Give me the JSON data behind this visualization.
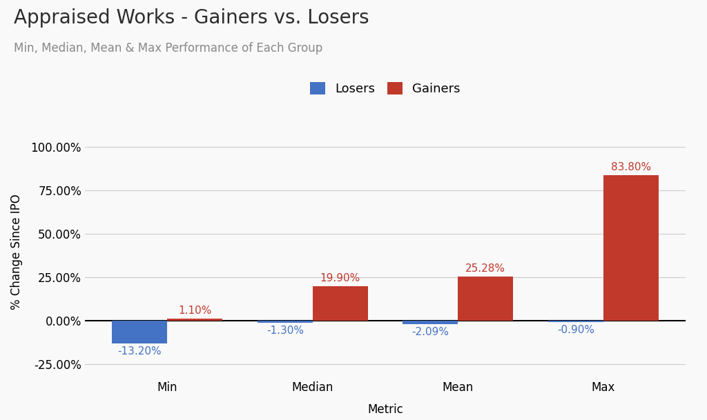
{
  "title": "Appraised Works - Gainers vs. Losers",
  "subtitle": "Min, Median, Mean & Max Performance of Each Group",
  "xlabel": "Metric",
  "ylabel": "% Change Since IPO",
  "categories": [
    "Min",
    "Median",
    "Mean",
    "Max"
  ],
  "losers": [
    -13.2,
    -1.3,
    -2.09,
    -0.9
  ],
  "gainers": [
    1.1,
    19.9,
    25.28,
    83.8
  ],
  "loser_color": "#4472C4",
  "gainer_color": "#C0392B",
  "ylim": [
    -33,
    112
  ],
  "yticks": [
    -25.0,
    0.0,
    25.0,
    50.0,
    75.0,
    100.0
  ],
  "bar_width": 0.38,
  "background_color": "#f9f9f9",
  "grid_color": "#cccccc",
  "title_fontsize": 20,
  "subtitle_fontsize": 12,
  "axis_label_fontsize": 12,
  "tick_fontsize": 12,
  "legend_fontsize": 13,
  "annotation_fontsize": 11
}
